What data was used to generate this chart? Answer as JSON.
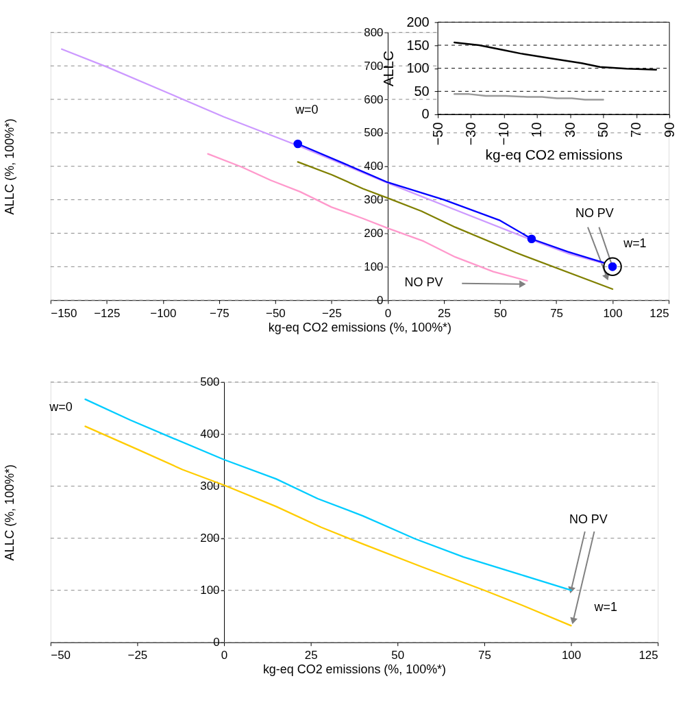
{
  "chart_data": [
    {
      "type": "line",
      "xlabel": "kg-eq CO2 emissions  (%, 100%*)",
      "ylabel": "ALLC (%, 100%*)",
      "xlim": [
        -150,
        125
      ],
      "xticks": [
        -150,
        -125,
        -100,
        -75,
        -50,
        -25,
        0,
        25,
        50,
        75,
        100,
        125
      ],
      "ylim": [
        0,
        800
      ],
      "yticks": [
        0,
        100,
        200,
        300,
        400,
        500,
        600,
        700,
        800
      ],
      "grid": "y",
      "series": [
        {
          "color": "#cc99ff",
          "x": [
            -145,
            -125,
            -97,
            -73,
            -40,
            0,
            30,
            64,
            80,
            96
          ],
          "values": [
            750,
            697,
            617,
            548,
            462,
            350,
            270,
            180,
            140,
            110
          ]
        },
        {
          "color": "#0000ff",
          "x": [
            -40,
            -20,
            0,
            25,
            50,
            64,
            80,
            96
          ],
          "values": [
            467,
            410,
            352,
            300,
            238,
            183,
            145,
            112
          ]
        },
        {
          "color": "#808000",
          "x": [
            -40,
            -25,
            -11,
            0,
            15,
            30,
            57,
            100
          ],
          "values": [
            413,
            375,
            333,
            305,
            266,
            218,
            142,
            33
          ]
        },
        {
          "color": "#ff99cc",
          "x": [
            -80,
            -65,
            -52,
            -39,
            -25,
            -11,
            0,
            16,
            30,
            47,
            62
          ],
          "values": [
            437,
            398,
            358,
            324,
            278,
            244,
            215,
            176,
            129,
            85,
            58
          ]
        },
        {
          "type": "scatter",
          "marker": "circle",
          "color": "#000000",
          "x": [
            100
          ],
          "values": [
            100
          ]
        },
        {
          "type": "scatter",
          "marker": "circle",
          "color": "#0000ff",
          "x": [
            -40,
            64,
            100
          ],
          "values": [
            467,
            183,
            100
          ]
        }
      ],
      "annotations": [
        "w=0",
        "w=1",
        {
          "text": "NO PV",
          "x": 100,
          "y": 100
        },
        "NO PV"
      ]
    },
    {
      "type": "line",
      "xlabel": "kg-eq CO2 emissions",
      "ylabel": "ALLC",
      "xlim": [
        -50,
        90
      ],
      "xticks": [
        -50,
        -30,
        -10,
        10,
        30,
        50,
        70,
        90
      ],
      "ylim": [
        0,
        200
      ],
      "yticks": [
        0,
        50,
        100,
        150,
        200
      ],
      "grid": "y",
      "series": [
        {
          "color": "#000000",
          "x": [
            -40,
            -25,
            -11,
            0,
            19,
            37,
            48,
            64,
            82
          ],
          "values": [
            156,
            150,
            140,
            132,
            121,
            111,
            103,
            99,
            97
          ]
        },
        {
          "color": "#999999",
          "x": [
            -40,
            -31,
            -21,
            -9,
            4,
            13,
            22,
            31,
            39,
            50
          ],
          "values": [
            44,
            44,
            40,
            40,
            38,
            38,
            35,
            35,
            32,
            32
          ]
        }
      ]
    },
    {
      "type": "line",
      "xlabel": "kg-eq CO2 emissions (%, 100%*)",
      "ylabel": "ALLC (%, 100%*)",
      "xlim": [
        -50,
        125
      ],
      "xticks": [
        -50,
        -25,
        0,
        25,
        50,
        75,
        100,
        125
      ],
      "ylim": [
        0,
        500
      ],
      "yticks": [
        0,
        100,
        200,
        300,
        400,
        500
      ],
      "grid": "y",
      "series": [
        {
          "color": "#00ccff",
          "x": [
            -40,
            -27,
            -15,
            0,
            15,
            27,
            40,
            55,
            69,
            85,
            100
          ],
          "values": [
            467,
            427,
            393,
            351,
            314,
            276,
            243,
            199,
            164,
            131,
            100
          ]
        },
        {
          "color": "#ffcc00",
          "x": [
            -40,
            -25,
            -12,
            0,
            15,
            28,
            40,
            57,
            75,
            86,
            100
          ],
          "values": [
            415,
            371,
            332,
            302,
            261,
            221,
            189,
            145,
            100,
            71,
            32
          ]
        }
      ],
      "annotations": [
        "w=0",
        {
          "text": "NO PV",
          "x": 100,
          "y": 100
        },
        "w=1"
      ]
    }
  ]
}
